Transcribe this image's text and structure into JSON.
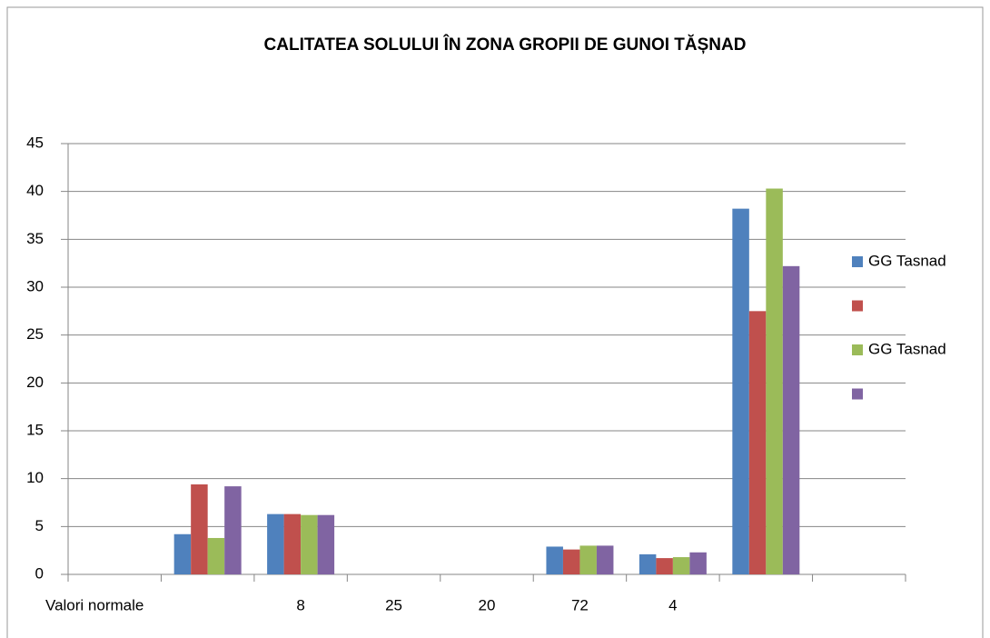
{
  "chart_data": {
    "type": "bar",
    "title": "CALITATEA SOLULUI ÎN ZONA GROPII DE GUNOI TĂȘNAD",
    "categories": [
      "Valori normale",
      null,
      "8",
      "25",
      "20",
      "72",
      "4",
      null,
      null
    ],
    "series": [
      {
        "name": "GG Tasnad",
        "color": "#4f81bd",
        "values": [
          null,
          4.2,
          6.3,
          null,
          null,
          2.9,
          2.1,
          38.2,
          null
        ]
      },
      {
        "name": null,
        "color": "#c0504d",
        "values": [
          null,
          9.4,
          6.3,
          null,
          null,
          2.6,
          1.7,
          27.5,
          null
        ]
      },
      {
        "name": "GG Tasnad",
        "color": "#9bbb59",
        "values": [
          null,
          3.8,
          6.2,
          null,
          null,
          3.0,
          1.8,
          40.3,
          null
        ]
      },
      {
        "name": null,
        "color": "#8064a2",
        "values": [
          null,
          9.2,
          6.2,
          null,
          null,
          3.0,
          2.3,
          32.2,
          null
        ]
      }
    ],
    "ylim": [
      0,
      45
    ],
    "yticks": [
      0,
      5,
      10,
      15,
      20,
      25,
      30,
      35,
      40,
      45
    ],
    "grid": true,
    "legend": "right"
  }
}
